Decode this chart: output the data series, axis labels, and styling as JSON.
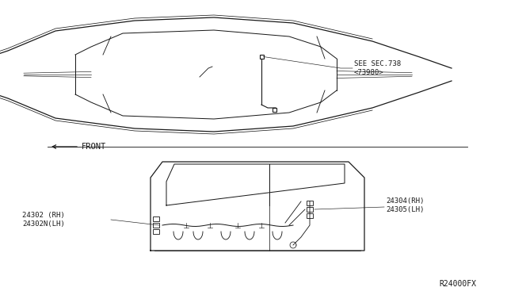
{
  "bg_color": "#ffffff",
  "line_color": "#1a1a1a",
  "gray_color": "#888888",
  "text_color": "#1a1a1a",
  "diagram_label": "R24000FX",
  "see_sec_text": "SEE SEC.738\n<73980>",
  "front_text": "FRONT",
  "label_left": "24302 (RH)\n24302N(LH)",
  "label_right": "24304(RH)\n24305(LH)",
  "font_size": 6.5,
  "lw_main": 0.9,
  "lw_thin": 0.5,
  "lw_thick": 1.4
}
